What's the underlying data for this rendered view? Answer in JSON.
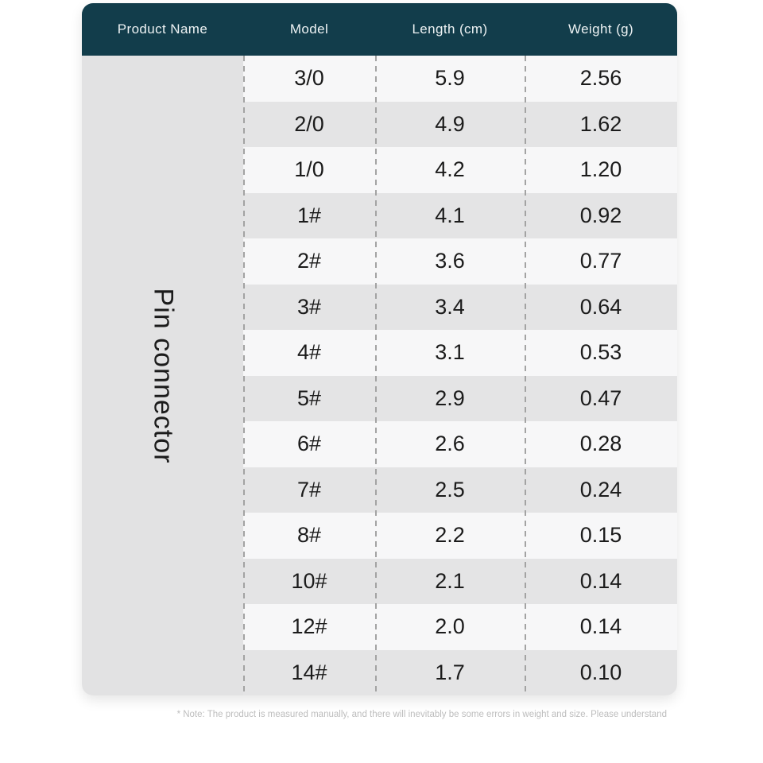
{
  "table": {
    "headers": {
      "product": "Product Name",
      "model": "Model",
      "length": "Length (cm)",
      "weight": "Weight (g)"
    },
    "product_name": "Pin connector",
    "rows": [
      {
        "model": "3/0",
        "length": "5.9",
        "weight": "2.56"
      },
      {
        "model": "2/0",
        "length": "4.9",
        "weight": "1.62"
      },
      {
        "model": "1/0",
        "length": "4.2",
        "weight": "1.20"
      },
      {
        "model": "1#",
        "length": "4.1",
        "weight": "0.92"
      },
      {
        "model": "2#",
        "length": "3.6",
        "weight": "0.77"
      },
      {
        "model": "3#",
        "length": "3.4",
        "weight": "0.64"
      },
      {
        "model": "4#",
        "length": "3.1",
        "weight": "0.53"
      },
      {
        "model": "5#",
        "length": "2.9",
        "weight": "0.47"
      },
      {
        "model": "6#",
        "length": "2.6",
        "weight": "0.28"
      },
      {
        "model": "7#",
        "length": "2.5",
        "weight": "0.24"
      },
      {
        "model": "8#",
        "length": "2.2",
        "weight": "0.15"
      },
      {
        "model": "10#",
        "length": "2.1",
        "weight": "0.14"
      },
      {
        "model": "12#",
        "length": "2.0",
        "weight": "0.14"
      },
      {
        "model": "14#",
        "length": "1.7",
        "weight": "0.10"
      }
    ]
  },
  "note": "* Note: The product is measured manually, and there will inevitably be some errors in weight and size. Please understand",
  "colors": {
    "header_bg": "#123d4b",
    "header_text": "#edf2f3",
    "row_light": "#f7f7f8",
    "row_dark": "#e4e4e5",
    "product_col_bg": "#e2e2e3",
    "divider": "#a3a3a3",
    "cell_text": "#1b1b1b",
    "note_text": "#bdbdbd"
  },
  "chart_data": {
    "type": "table",
    "title": "",
    "columns": [
      "Product Name",
      "Model",
      "Length (cm)",
      "Weight (g)"
    ],
    "product_name": "Pin connector",
    "models": [
      "3/0",
      "2/0",
      "1/0",
      "1#",
      "2#",
      "3#",
      "4#",
      "5#",
      "6#",
      "7#",
      "8#",
      "10#",
      "12#",
      "14#"
    ],
    "length_cm": [
      5.9,
      4.9,
      4.2,
      4.1,
      3.6,
      3.4,
      3.1,
      2.9,
      2.6,
      2.5,
      2.2,
      2.1,
      2.0,
      1.7
    ],
    "weight_g": [
      2.56,
      1.62,
      1.2,
      0.92,
      0.77,
      0.64,
      0.53,
      0.47,
      0.28,
      0.24,
      0.15,
      0.14,
      0.14,
      0.1
    ],
    "footnote": "* Note: The product is measured manually, and there will inevitably be some errors in weight and size. Please understand"
  }
}
